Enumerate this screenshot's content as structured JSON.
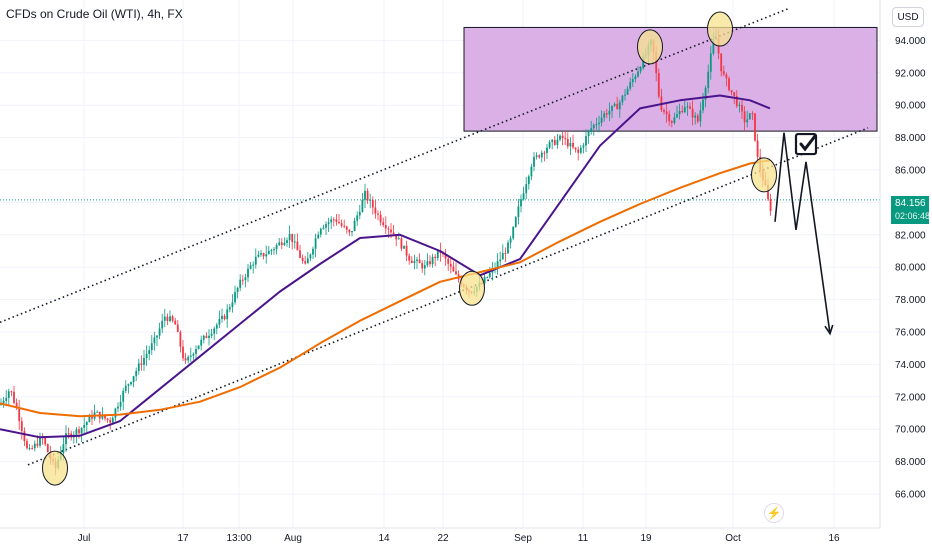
{
  "header": {
    "title": "CFDs on Crude Oil (WTI), 4h, FX"
  },
  "currency_button": {
    "label": "USD"
  },
  "last_price": {
    "value": "84.156",
    "countdown": "02:06:48",
    "color": "#089981"
  },
  "colors": {
    "up": "#089981",
    "down": "#f23645",
    "ma_fast": "#4a148c",
    "ma_slow": "#ef6c00",
    "zone": "#dbb0e6",
    "highlight": "#f7e38e",
    "projection": "#131722"
  },
  "icons": {
    "alert": "lightning-icon",
    "check": "checkmark-icon"
  },
  "chart_data": {
    "type": "candlestick",
    "symbol": "CFDs on Crude Oil (WTI)",
    "interval": "4h",
    "ylim": [
      65,
      96
    ],
    "y_ticks": [
      "66.000",
      "68.000",
      "70.000",
      "72.000",
      "74.000",
      "76.000",
      "78.000",
      "80.000",
      "82.000",
      "84.000",
      "86.000",
      "88.000",
      "90.000",
      "92.000",
      "94.000"
    ],
    "x_ticks": [
      "Jul",
      "17",
      "13:00",
      "Aug",
      "14",
      "22",
      "Sep",
      "11",
      "19",
      "Oct",
      "16"
    ],
    "price_path": [
      [
        0,
        71.5
      ],
      [
        10,
        72.5
      ],
      [
        18,
        71.0
      ],
      [
        28,
        68.5
      ],
      [
        42,
        69.5
      ],
      [
        55,
        67.5
      ],
      [
        65,
        69.5
      ],
      [
        80,
        70.0
      ],
      [
        95,
        71.0
      ],
      [
        110,
        70.5
      ],
      [
        125,
        72.5
      ],
      [
        140,
        74.0
      ],
      [
        155,
        75.5
      ],
      [
        165,
        77.0
      ],
      [
        175,
        76.5
      ],
      [
        185,
        74.0
      ],
      [
        195,
        75.0
      ],
      [
        210,
        76.0
      ],
      [
        225,
        77.0
      ],
      [
        240,
        79.0
      ],
      [
        255,
        80.5
      ],
      [
        270,
        81.0
      ],
      [
        290,
        82.0
      ],
      [
        305,
        80.0
      ],
      [
        320,
        82.5
      ],
      [
        335,
        83.0
      ],
      [
        350,
        82.0
      ],
      [
        365,
        84.5
      ],
      [
        380,
        83.0
      ],
      [
        395,
        82.0
      ],
      [
        410,
        80.5
      ],
      [
        425,
        80.0
      ],
      [
        440,
        81.0
      ],
      [
        455,
        79.5
      ],
      [
        470,
        78.5
      ],
      [
        482,
        79.0
      ],
      [
        495,
        80.0
      ],
      [
        510,
        81.5
      ],
      [
        520,
        84.0
      ],
      [
        532,
        86.5
      ],
      [
        548,
        87.5
      ],
      [
        562,
        88.0
      ],
      [
        578,
        87.0
      ],
      [
        590,
        88.5
      ],
      [
        605,
        89.5
      ],
      [
        618,
        90.0
      ],
      [
        632,
        91.5
      ],
      [
        645,
        93.0
      ],
      [
        652,
        94.0
      ],
      [
        660,
        90.0
      ],
      [
        672,
        89.0
      ],
      [
        685,
        90.0
      ],
      [
        698,
        89.0
      ],
      [
        708,
        92.0
      ],
      [
        715,
        94.5
      ],
      [
        722,
        92.0
      ],
      [
        730,
        91.0
      ],
      [
        738,
        90.0
      ],
      [
        745,
        89.0
      ],
      [
        752,
        89.5
      ],
      [
        758,
        86.5
      ],
      [
        765,
        85.0
      ],
      [
        770,
        83.5
      ],
      [
        773,
        84.15
      ]
    ],
    "series": [
      {
        "name": "",
        "type": "ma",
        "color": "#4a148c",
        "points": [
          [
            0,
            70.0
          ],
          [
            40,
            69.5
          ],
          [
            80,
            69.6
          ],
          [
            120,
            70.5
          ],
          [
            160,
            72.5
          ],
          [
            200,
            74.5
          ],
          [
            240,
            76.5
          ],
          [
            280,
            78.5
          ],
          [
            320,
            80.2
          ],
          [
            360,
            81.8
          ],
          [
            400,
            82.0
          ],
          [
            440,
            81.0
          ],
          [
            480,
            79.5
          ],
          [
            520,
            80.5
          ],
          [
            560,
            84.0
          ],
          [
            600,
            87.5
          ],
          [
            640,
            89.8
          ],
          [
            680,
            90.3
          ],
          [
            720,
            90.6
          ],
          [
            750,
            90.3
          ],
          [
            770,
            89.8
          ]
        ]
      },
      {
        "name": "",
        "type": "ma",
        "color": "#ef6c00",
        "points": [
          [
            0,
            71.6
          ],
          [
            40,
            71.0
          ],
          [
            80,
            70.8
          ],
          [
            120,
            70.9
          ],
          [
            160,
            71.2
          ],
          [
            200,
            71.7
          ],
          [
            240,
            72.6
          ],
          [
            280,
            73.8
          ],
          [
            320,
            75.3
          ],
          [
            360,
            76.7
          ],
          [
            400,
            77.9
          ],
          [
            440,
            79.1
          ],
          [
            480,
            79.7
          ],
          [
            520,
            80.3
          ],
          [
            560,
            81.6
          ],
          [
            600,
            82.8
          ],
          [
            640,
            83.9
          ],
          [
            680,
            84.9
          ],
          [
            720,
            85.8
          ],
          [
            750,
            86.4
          ],
          [
            770,
            86.6
          ]
        ]
      }
    ],
    "annotations": {
      "zone": {
        "y_top": 94.8,
        "y_bottom": 88.4
      },
      "channel_upper": [
        [
          0,
          76.6
        ],
        [
          790,
          96.0
        ]
      ],
      "channel_lower": [
        [
          28,
          67.8
        ],
        [
          868,
          88.6
        ]
      ],
      "highlights": [
        [
          55,
          67.6
        ],
        [
          472,
          78.7
        ],
        [
          650,
          93.6
        ],
        [
          720,
          94.7
        ],
        [
          764,
          85.7
        ]
      ],
      "projection": [
        [
          775,
          82.8
        ],
        [
          784,
          88.3
        ],
        [
          796,
          82.3
        ],
        [
          806,
          86.5
        ],
        [
          830,
          75.9
        ]
      ],
      "checkmark": [
        806,
        87.6
      ]
    }
  }
}
